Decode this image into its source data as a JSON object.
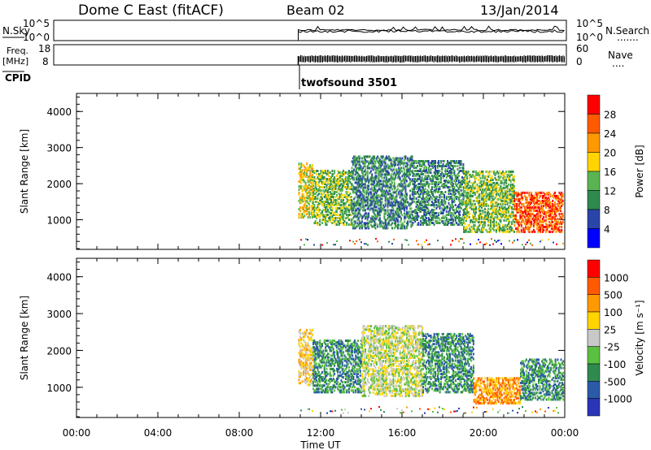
{
  "header": {
    "title": "Dome C East (fitACF)",
    "beam": "Beam 02",
    "date": "13/Jan/2014"
  },
  "strip": {
    "nsky": {
      "label": "N.Sky",
      "ticks": [
        "10^5",
        "10^0"
      ]
    },
    "nsearch": {
      "label": "N.Search",
      "ticks": [
        "10^5",
        "10^0"
      ],
      "dots": "......."
    },
    "freq": {
      "label1": "Freq.",
      "label2": "[MHz]",
      "ticks": [
        "18",
        "8"
      ]
    },
    "nave": {
      "label": "Nave",
      "ticks": [
        "60",
        "0"
      ],
      "dots": "...."
    },
    "cpid": {
      "label": "CPID",
      "program": "twofsound 3501"
    }
  },
  "colors": {
    "power": [
      "#0000ff",
      "#2a45a8",
      "#2e8a4e",
      "#5ab452",
      "#ffd400",
      "#ff9900",
      "#ff5a00",
      "#ff0000"
    ],
    "velocity": [
      "#2a35b8",
      "#2a5aa8",
      "#2e8a4e",
      "#5ac040",
      "#c8c8c8",
      "#ffd400",
      "#ff9900",
      "#ff5a00",
      "#ff0000"
    ]
  },
  "chart_data": [
    {
      "type": "heatmap",
      "name": "power",
      "ylabel": "Slant Range [km]",
      "ylim": [
        180,
        4500
      ],
      "yticks": [
        1000,
        2000,
        3000,
        4000
      ],
      "xlim": [
        0,
        24
      ],
      "colorbar": {
        "label": "Power [dB]",
        "ticks": [
          "28",
          "24",
          "20",
          "16",
          "12",
          "8",
          "4"
        ]
      },
      "regions": [
        {
          "x": [
            10.9,
            11.6
          ],
          "y": [
            1100,
            2600
          ],
          "level": 4
        },
        {
          "x": [
            11.6,
            13.5
          ],
          "y": [
            900,
            2400
          ],
          "level": 3
        },
        {
          "x": [
            13.5,
            16.5
          ],
          "y": [
            800,
            2800
          ],
          "level": 2
        },
        {
          "x": [
            16.5,
            19.0
          ],
          "y": [
            900,
            2700
          ],
          "level": 2
        },
        {
          "x": [
            19.0,
            21.5
          ],
          "y": [
            700,
            2400
          ],
          "level": 3
        },
        {
          "x": [
            21.5,
            23.9
          ],
          "y": [
            700,
            1800
          ],
          "level": 6
        }
      ]
    },
    {
      "type": "heatmap",
      "name": "velocity",
      "ylabel": "Slant Range [km]",
      "xlabel": "Time UT",
      "ylim": [
        180,
        4500
      ],
      "yticks": [
        1000,
        2000,
        3000,
        4000
      ],
      "xlim": [
        0,
        24
      ],
      "xticks": [
        "00:00",
        "04:00",
        "08:00",
        "12:00",
        "16:00",
        "20:00",
        "00:00"
      ],
      "colorbar": {
        "label": "Velocity [m s⁻¹]",
        "ticks": [
          "1000",
          "500",
          "100",
          "25",
          "-25",
          "-100",
          "-500",
          "-1000"
        ]
      },
      "regions": [
        {
          "x": [
            10.9,
            11.6
          ],
          "y": [
            1100,
            2600
          ],
          "level": 5
        },
        {
          "x": [
            11.6,
            14.0
          ],
          "y": [
            900,
            2300
          ],
          "level": 2
        },
        {
          "x": [
            14.0,
            17.0
          ],
          "y": [
            800,
            2700
          ],
          "level": 4
        },
        {
          "x": [
            17.0,
            19.5
          ],
          "y": [
            900,
            2500
          ],
          "level": 2
        },
        {
          "x": [
            19.5,
            21.8
          ],
          "y": [
            600,
            1300
          ],
          "level": 6
        },
        {
          "x": [
            21.8,
            23.9
          ],
          "y": [
            700,
            1800
          ],
          "level": 2
        }
      ]
    }
  ]
}
